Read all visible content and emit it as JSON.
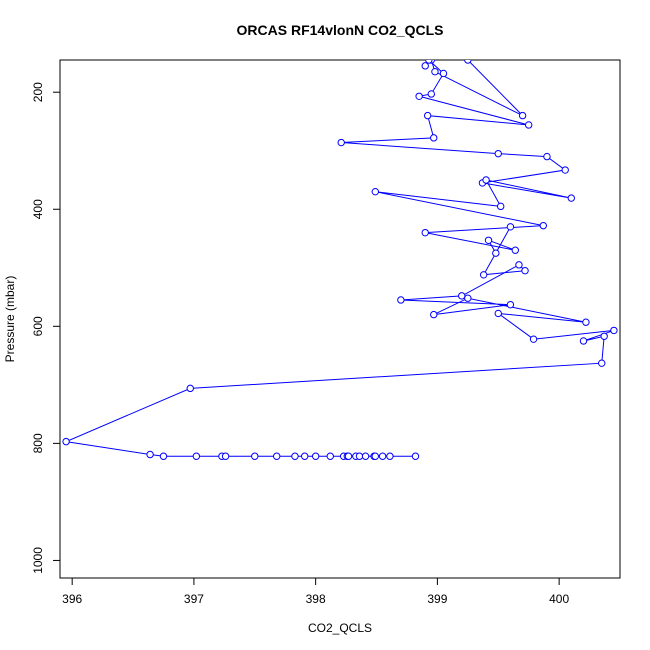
{
  "chart_data": {
    "type": "line",
    "title": "ORCAS RF14vlonN CO2_QCLS",
    "xlabel": "CO2_QCLS",
    "ylabel": "Pressure (mbar)",
    "xlim": [
      395.9,
      400.5
    ],
    "ylim": [
      1030,
      145
    ],
    "y_inverted": true,
    "xticks": [
      396,
      397,
      398,
      399,
      400
    ],
    "yticks": [
      200,
      400,
      600,
      800,
      1000
    ],
    "grid": false,
    "line_color": "#0000ff",
    "marker": "open-circle",
    "series": [
      {
        "x": [
          399.25,
          399.7,
          398.98,
          398.95,
          398.9,
          398.93,
          399.05,
          398.95,
          398.85,
          399.75,
          398.92,
          398.97,
          398.21,
          399.5,
          399.9,
          400.05,
          399.37,
          400.1,
          399.4,
          399.52,
          398.49,
          399.87,
          398.9,
          399.64,
          399.42,
          399.48,
          399.6,
          399.38,
          399.72,
          399.67,
          399.2,
          398.7,
          399.6,
          398.97,
          399.25,
          400.22,
          399.5,
          399.79,
          400.45,
          400.2,
          400.37,
          400.35,
          396.97,
          395.95,
          396.64,
          396.75,
          397.02,
          397.23,
          397.26,
          397.5,
          397.68,
          397.83,
          397.91,
          398.0,
          398.12,
          398.23,
          398.26,
          398.27,
          398.33,
          398.36,
          398.41,
          398.48,
          398.49,
          398.55,
          398.61,
          398.82
        ],
        "y": [
          145,
          240,
          165,
          145,
          155,
          145,
          168,
          203,
          207,
          256,
          240,
          278,
          286,
          305,
          310,
          333,
          355,
          381,
          350,
          395,
          370,
          428,
          440,
          470,
          453,
          475,
          430,
          512,
          505,
          495,
          548,
          555,
          563,
          580,
          552,
          593,
          578,
          622,
          607,
          625,
          617,
          663,
          706,
          797,
          819,
          822,
          822,
          822,
          822,
          822,
          822,
          822,
          822,
          822,
          822,
          822,
          822,
          822,
          822,
          822,
          822,
          822,
          822,
          822,
          822,
          822
        ]
      }
    ]
  }
}
